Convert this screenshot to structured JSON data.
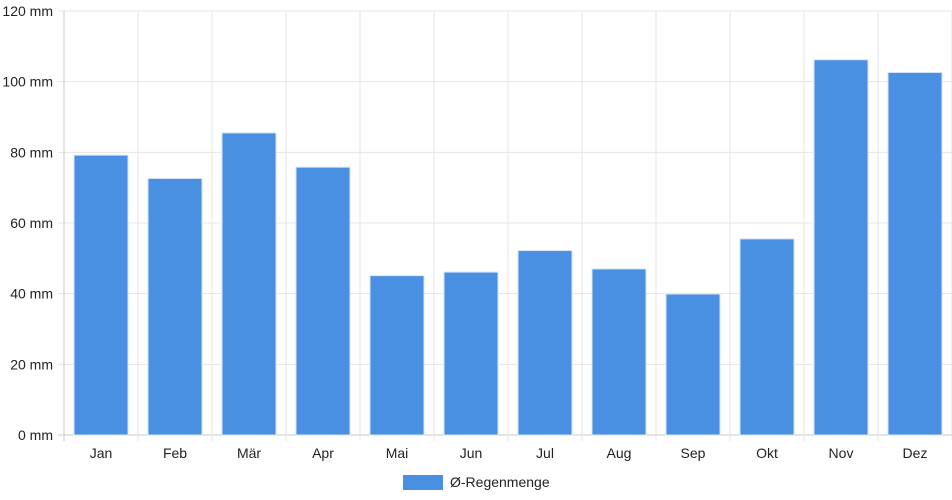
{
  "chart_data": {
    "type": "bar",
    "categories": [
      "Jan",
      "Feb",
      "Mär",
      "Apr",
      "Mai",
      "Jun",
      "Jul",
      "Aug",
      "Sep",
      "Okt",
      "Nov",
      "Dez"
    ],
    "series": [
      {
        "name": "Ø-Regenmenge",
        "values": [
          79.2,
          72.6,
          85.5,
          75.8,
          45.1,
          46.1,
          52.2,
          47.0,
          39.9,
          55.5,
          106.2,
          102.6
        ],
        "color": "#4a90e2"
      }
    ],
    "ylim": [
      0,
      120
    ],
    "yticks": [
      0,
      20,
      40,
      60,
      80,
      100,
      120
    ],
    "ytick_labels": [
      "0 mm",
      "20 mm",
      "40 mm",
      "60 mm",
      "80 mm",
      "100 mm",
      "120 mm"
    ],
    "grid": true,
    "legend_position": "bottom-center"
  }
}
